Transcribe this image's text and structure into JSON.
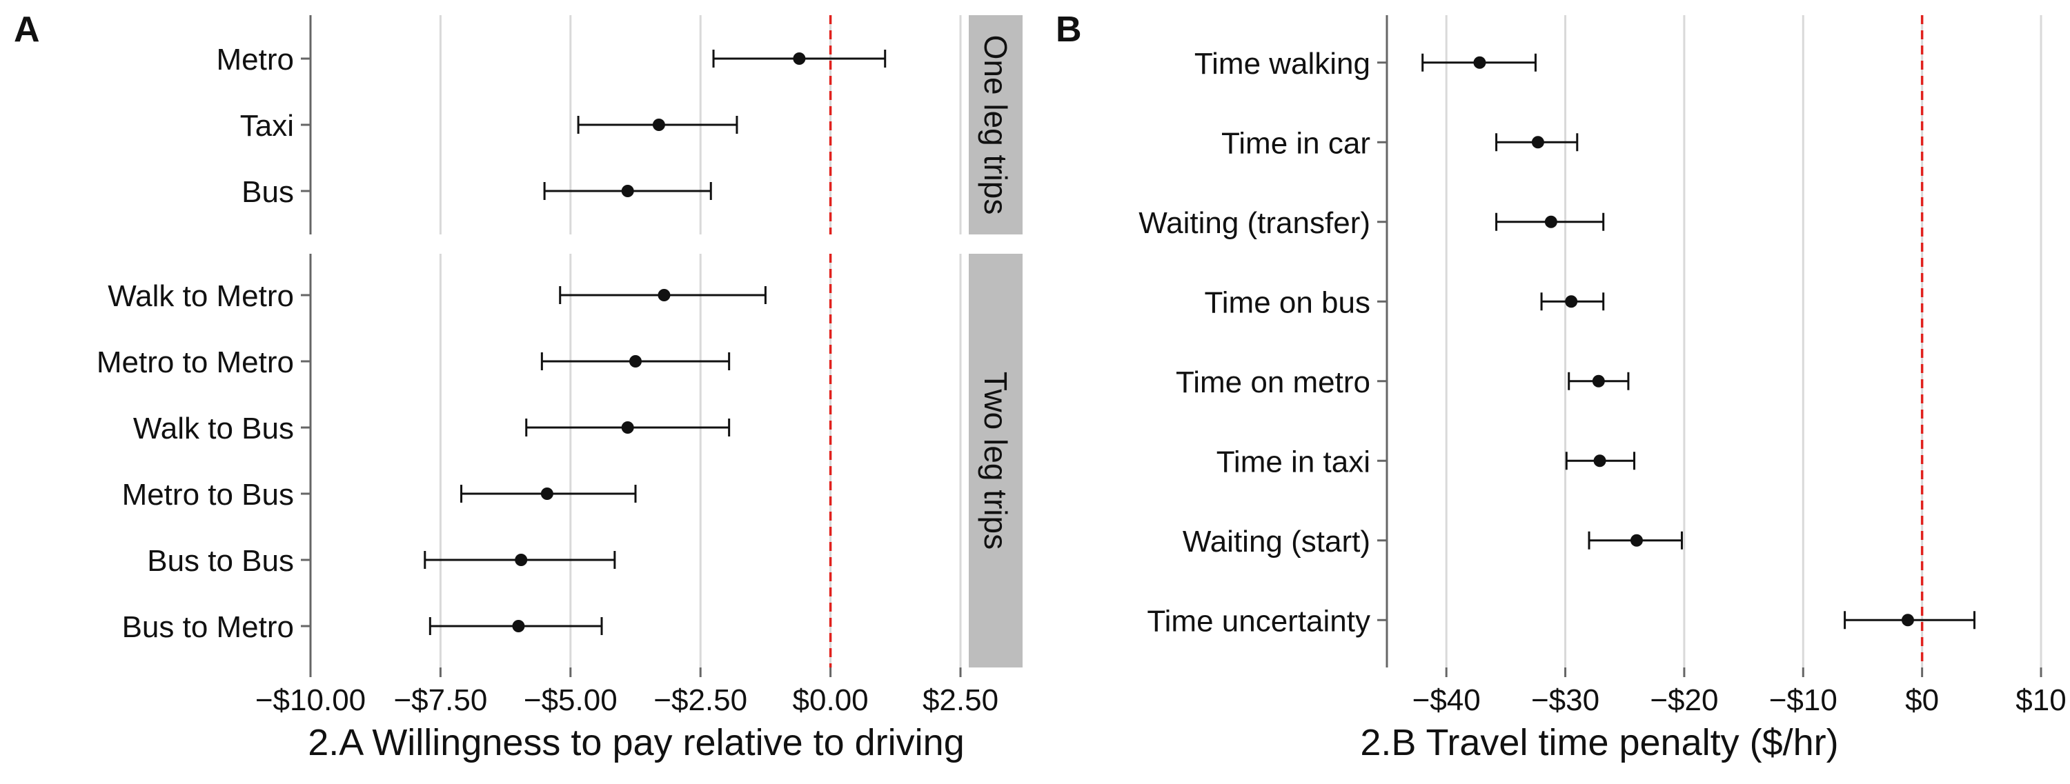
{
  "chart_data": [
    {
      "type": "scatter",
      "panel_label": "A",
      "xlabel": "2.A Willingness to pay relative to driving",
      "xlim": [
        -10.0,
        2.5
      ],
      "xticks": [
        -10.0,
        -7.5,
        -5.0,
        -2.5,
        0.0,
        2.5
      ],
      "xtick_labels": [
        "−$10.00",
        "−$7.50",
        "−$5.00",
        "−$2.50",
        "$0.00",
        "$2.50"
      ],
      "grid": true,
      "reference_line": {
        "x": 0,
        "color": "#e0211d",
        "style": "dashed"
      },
      "facets": [
        {
          "label": "One leg trips",
          "points": [
            {
              "name": "Metro",
              "estimate": -0.6,
              "lower": -2.25,
              "upper": 1.05
            },
            {
              "name": "Taxi",
              "estimate": -3.3,
              "lower": -4.85,
              "upper": -1.8
            },
            {
              "name": "Bus",
              "estimate": -3.9,
              "lower": -5.5,
              "upper": -2.3
            }
          ]
        },
        {
          "label": "Two leg trips",
          "points": [
            {
              "name": "Walk to Metro",
              "estimate": -3.2,
              "lower": -5.2,
              "upper": -1.25
            },
            {
              "name": "Metro to Metro",
              "estimate": -3.75,
              "lower": -5.55,
              "upper": -1.95
            },
            {
              "name": "Walk to Bus",
              "estimate": -3.9,
              "lower": -5.85,
              "upper": -1.95
            },
            {
              "name": "Metro to Bus",
              "estimate": -5.45,
              "lower": -7.1,
              "upper": -3.75
            },
            {
              "name": "Bus to Bus",
              "estimate": -5.95,
              "lower": -7.8,
              "upper": -4.15
            },
            {
              "name": "Bus to Metro",
              "estimate": -6.0,
              "lower": -7.7,
              "upper": -4.4
            }
          ]
        }
      ]
    },
    {
      "type": "scatter",
      "panel_label": "B",
      "xlabel": "2.B Travel time penalty ($/hr)",
      "xlim": [
        -45,
        10
      ],
      "xticks": [
        -40,
        -30,
        -20,
        -10,
        0,
        10
      ],
      "xtick_labels": [
        "−$40",
        "−$30",
        "−$20",
        "−$10",
        "$0",
        "$10"
      ],
      "grid": true,
      "reference_line": {
        "x": 0,
        "color": "#e0211d",
        "style": "dashed"
      },
      "points": [
        {
          "name": "Time walking",
          "estimate": -37.2,
          "lower": -42.0,
          "upper": -32.5
        },
        {
          "name": "Time in car",
          "estimate": -32.3,
          "lower": -35.8,
          "upper": -29.0
        },
        {
          "name": "Waiting (transfer)",
          "estimate": -31.2,
          "lower": -35.8,
          "upper": -26.8
        },
        {
          "name": "Time on bus",
          "estimate": -29.5,
          "lower": -32.0,
          "upper": -26.8
        },
        {
          "name": "Time on metro",
          "estimate": -27.2,
          "lower": -29.7,
          "upper": -24.7
        },
        {
          "name": "Time in taxi",
          "estimate": -27.1,
          "lower": -29.9,
          "upper": -24.2
        },
        {
          "name": "Waiting (start)",
          "estimate": -24.0,
          "lower": -28.0,
          "upper": -20.2
        },
        {
          "name": "Time uncertainty",
          "estimate": -1.2,
          "lower": -6.5,
          "upper": 4.4
        }
      ]
    }
  ]
}
